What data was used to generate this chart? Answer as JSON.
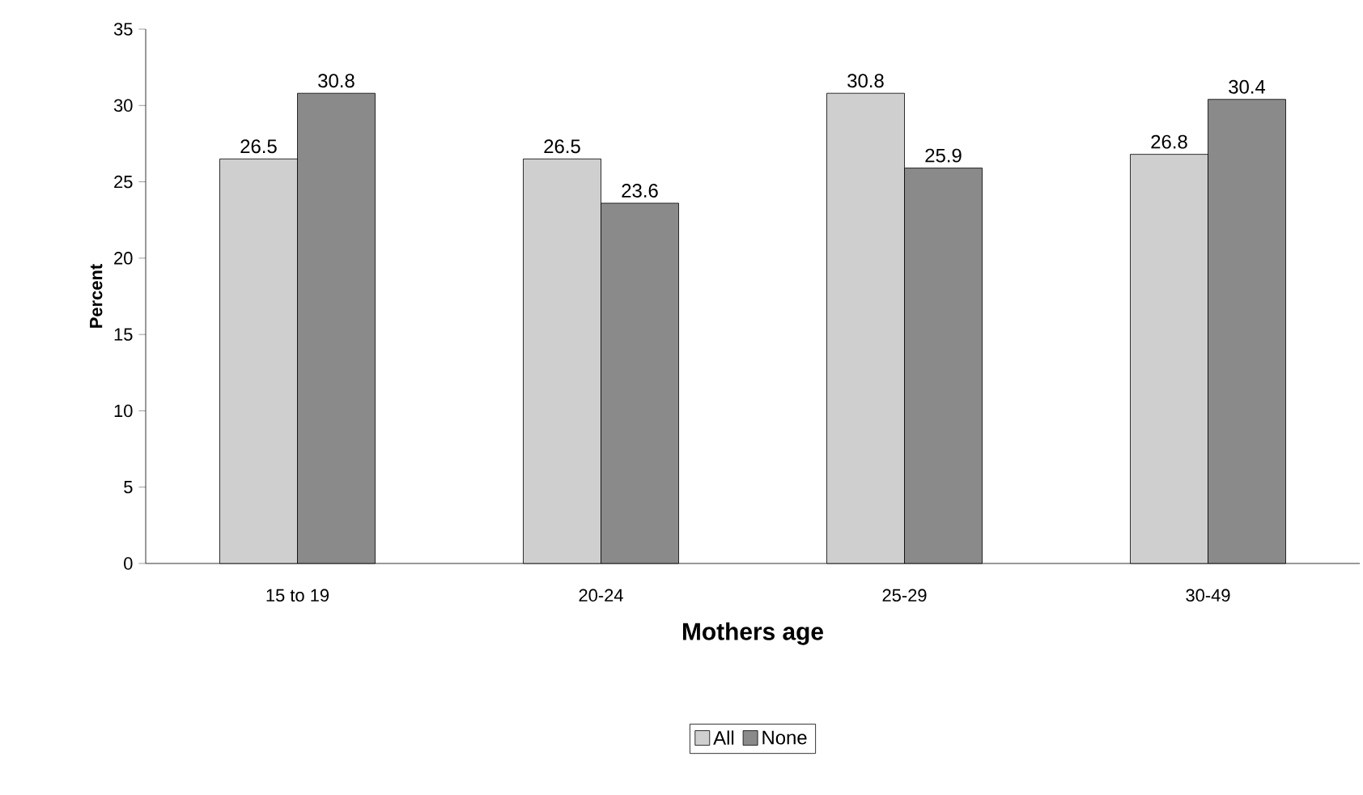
{
  "chart_data": {
    "type": "bar",
    "xlabel": "Mothers age",
    "ylabel": "Percent",
    "categories": [
      "15 to 19",
      "20-24",
      "25-29",
      "30-49"
    ],
    "series": [
      {
        "name": "All",
        "color": "#cfcfcf",
        "values": [
          26.5,
          26.5,
          30.8,
          26.8
        ]
      },
      {
        "name": "None",
        "color": "#8a8a8a",
        "values": [
          30.8,
          23.6,
          25.9,
          30.4
        ]
      }
    ],
    "ylim": [
      0,
      35
    ],
    "yticks": [
      0,
      5,
      10,
      15,
      20,
      25,
      30,
      35
    ],
    "data_labels": true,
    "legend": "bottom",
    "grid": false
  }
}
